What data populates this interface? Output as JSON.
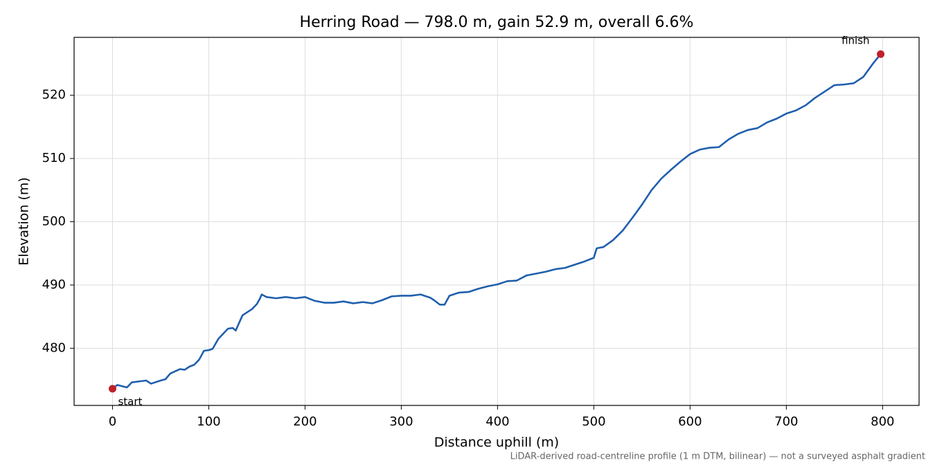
{
  "chart_data": {
    "type": "line",
    "title": "Herring Road — 798.0 m, gain 52.9 m, overall 6.6%",
    "x_label": "Distance uphill (m)",
    "y_label": "Elevation (m)",
    "note": "LiDAR-derived road-centreline profile (1 m DTM, bilinear) — not a surveyed asphalt gradient",
    "x": [
      0,
      5,
      10,
      15,
      20,
      30,
      35,
      40,
      50,
      55,
      60,
      70,
      75,
      80,
      85,
      90,
      95,
      100,
      104,
      110,
      120,
      125,
      128,
      135,
      145,
      150,
      153,
      155,
      160,
      170,
      180,
      190,
      200,
      210,
      220,
      230,
      240,
      250,
      260,
      270,
      280,
      290,
      300,
      310,
      320,
      330,
      334,
      340,
      345,
      350,
      360,
      370,
      380,
      390,
      400,
      410,
      420,
      430,
      440,
      450,
      460,
      470,
      480,
      490,
      500,
      503,
      510,
      520,
      530,
      540,
      550,
      560,
      570,
      580,
      590,
      600,
      610,
      620,
      630,
      640,
      650,
      660,
      670,
      680,
      690,
      700,
      710,
      720,
      730,
      740,
      750,
      760,
      770,
      780,
      790,
      798
    ],
    "series": [
      {
        "name": "Elevation",
        "color": "#1f5fad",
        "values": [
          473.6,
          474.2,
          474.0,
          473.8,
          474.6,
          474.8,
          474.9,
          474.4,
          474.9,
          475.1,
          476.0,
          476.7,
          476.6,
          477.1,
          477.4,
          478.2,
          479.6,
          479.7,
          479.9,
          481.5,
          483.1,
          483.2,
          482.8,
          485.2,
          486.2,
          487.0,
          487.8,
          488.5,
          488.1,
          487.9,
          488.1,
          487.9,
          488.1,
          487.5,
          487.2,
          487.2,
          487.4,
          487.1,
          487.3,
          487.1,
          487.6,
          488.2,
          488.3,
          488.3,
          488.5,
          488.0,
          487.6,
          486.9,
          486.9,
          488.3,
          488.8,
          488.9,
          489.4,
          489.8,
          490.1,
          490.6,
          490.7,
          491.5,
          491.8,
          492.1,
          492.5,
          492.7,
          493.2,
          493.7,
          494.3,
          495.8,
          496.0,
          497.1,
          498.6,
          500.6,
          502.7,
          505.0,
          506.8,
          508.2,
          509.5,
          510.7,
          511.4,
          511.7,
          511.8,
          513.0,
          513.9,
          514.5,
          514.8,
          515.7,
          516.3,
          517.1,
          517.6,
          518.4,
          519.6,
          520.6,
          521.6,
          521.7,
          521.9,
          522.9,
          525.0,
          526.5
        ]
      }
    ],
    "points": {
      "color": "#c0202a",
      "x": [
        0,
        798
      ],
      "values": [
        473.6,
        526.5
      ]
    },
    "annotations": [
      {
        "text": "start"
      },
      {
        "text": "finish"
      }
    ],
    "xlim": [
      -39.9,
      837.9
    ],
    "ylim": [
      470.96,
      529.15
    ],
    "xticks": [
      0,
      100,
      200,
      300,
      400,
      500,
      600,
      700,
      800
    ],
    "yticks": [
      480,
      490,
      500,
      510,
      520
    ],
    "grid": true
  }
}
